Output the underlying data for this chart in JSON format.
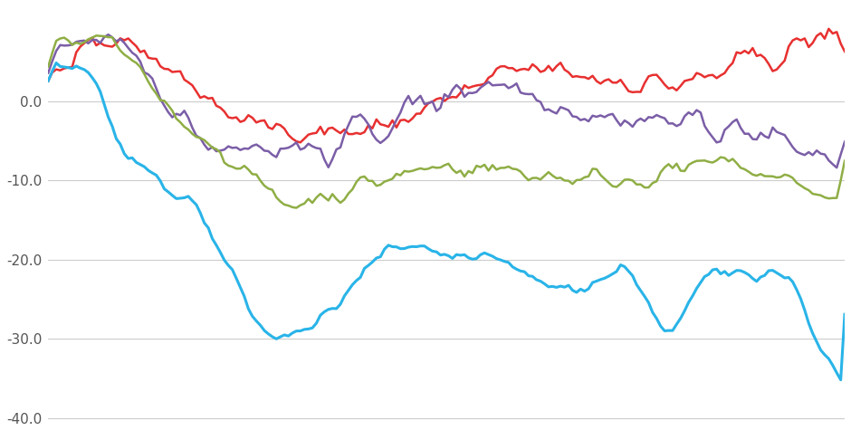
{
  "title": "",
  "background_color": "#ffffff",
  "grid_color": "#cccccc",
  "ylim": [
    -42,
    12
  ],
  "yticks": [
    0.0,
    -10.0,
    -20.0,
    -30.0,
    -40.0
  ],
  "line_colors": {
    "conservative": "#e83030",
    "moderate": "#7b5ea7",
    "general": "#8fae45",
    "liberal": "#29b4e8"
  },
  "line_widths": {
    "conservative": 1.8,
    "moderate": 1.8,
    "general": 1.8,
    "liberal": 2.2
  }
}
